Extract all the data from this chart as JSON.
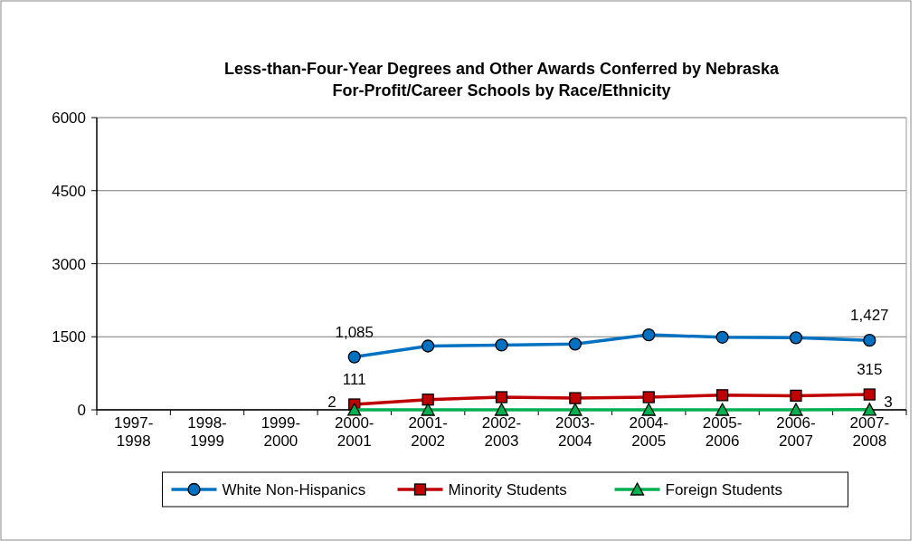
{
  "chart_data": {
    "type": "line",
    "title": "Less-than-Four-Year Degrees and Other Awards Conferred by Nebraska For-Profit/Career Schools by Race/Ethnicity",
    "categories": [
      "1997-1998",
      "1998-1999",
      "1999-2000",
      "2000-2001",
      "2001-2002",
      "2002-2003",
      "2003-2004",
      "2004-2005",
      "2005-2006",
      "2006-2007",
      "2007-2008"
    ],
    "series": [
      {
        "name": "White Non-Hispanics",
        "color": "#0070c0",
        "marker": "circle",
        "values": [
          null,
          null,
          null,
          1085,
          1310,
          1330,
          1350,
          1540,
          1490,
          1480,
          1427
        ],
        "value_labels": [
          null,
          null,
          null,
          "1,085",
          null,
          null,
          null,
          null,
          null,
          null,
          "1,427"
        ]
      },
      {
        "name": "Minority Students",
        "color": "#c00000",
        "marker": "square",
        "values": [
          null,
          null,
          null,
          111,
          210,
          260,
          240,
          260,
          300,
          290,
          315
        ],
        "value_labels": [
          null,
          null,
          null,
          "111",
          null,
          null,
          null,
          null,
          null,
          null,
          "315"
        ]
      },
      {
        "name": "Foreign Students",
        "color": "#00b050",
        "marker": "triangle",
        "values": [
          null,
          null,
          null,
          2,
          0,
          0,
          0,
          0,
          0,
          0,
          3
        ],
        "value_labels": [
          null,
          null,
          null,
          "2",
          null,
          null,
          null,
          null,
          null,
          null,
          "3"
        ]
      }
    ],
    "ylim": [
      0,
      6000
    ],
    "yticks": [
      0,
      1500,
      3000,
      4500,
      6000
    ],
    "grid": "y",
    "legend": "bottom"
  }
}
